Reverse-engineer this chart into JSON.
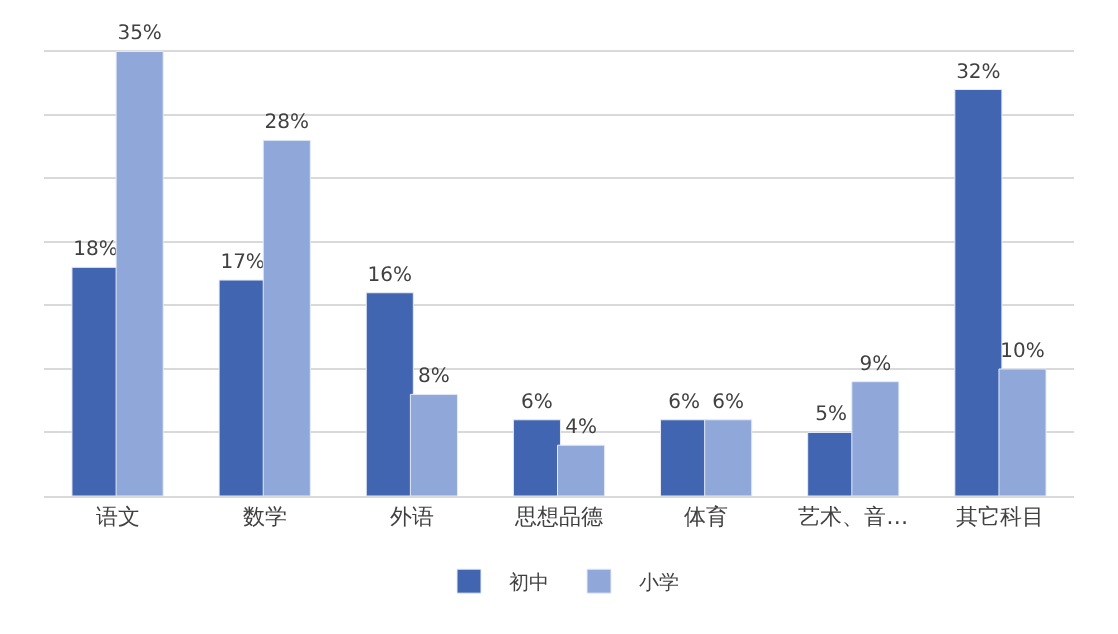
{
  "chart_data": {
    "type": "bar",
    "categories": [
      "语文",
      "数学",
      "外语",
      "思想品德",
      "体育",
      "艺术、音…",
      "其它科目"
    ],
    "series": [
      {
        "name": "初中",
        "color": "#4165b0",
        "values": [
          18,
          17,
          16,
          6,
          6,
          5,
          32
        ],
        "value_labels": [
          "18%",
          "17%",
          "16%",
          "6%",
          "6%",
          "5%",
          "32%"
        ]
      },
      {
        "name": "小学",
        "color": "#90a7d9",
        "values": [
          35,
          28,
          8,
          4,
          6,
          9,
          10
        ],
        "value_labels": [
          "35%",
          "28%",
          "8%",
          "4%",
          "6%",
          "9%",
          "10%"
        ]
      }
    ],
    "yticks": [
      {
        "value": 0,
        "label": null
      },
      {
        "value": 5,
        "label": null
      },
      {
        "value": 10,
        "label": null
      },
      {
        "value": 15,
        "label": null
      },
      {
        "value": 20,
        "label": null
      },
      {
        "value": 25,
        "label": null
      },
      {
        "value": 30,
        "label": null
      },
      {
        "value": 35,
        "label": null
      }
    ],
    "grid": "y",
    "legend": "bottom",
    "tick_labels": "x"
  }
}
